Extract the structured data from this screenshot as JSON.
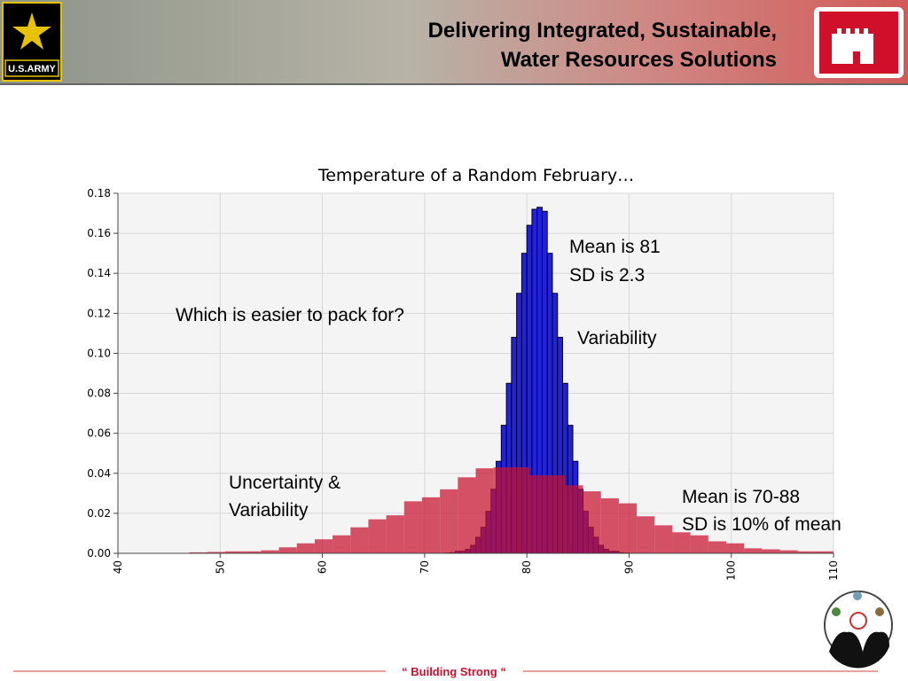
{
  "header": {
    "title_lines": [
      "Delivering Integrated, Sustainable,",
      "Water Resources Solutions"
    ],
    "logo_text": "U.S.ARMY"
  },
  "footer": "“ Building  Strong “",
  "chart_data": {
    "type": "histogram",
    "title": "Temperature of a Random February…",
    "xlim": [
      40,
      110
    ],
    "xticks": [
      40,
      50,
      60,
      70,
      80,
      90,
      100,
      110
    ],
    "ylim": [
      0,
      0.18
    ],
    "yticks": [
      {
        "value": 0,
        "label": "0.00"
      },
      0.02,
      0.04,
      0.06,
      0.08,
      {
        "value": 0.1,
        "label": "0.10"
      },
      0.12,
      0.14,
      0.16,
      0.18
    ],
    "grid": true,
    "series": [
      {
        "color": "#c8102e",
        "bins": [
          47,
          48.75,
          50.5,
          52.25,
          54,
          55.75,
          57.5,
          59.25,
          61,
          62.75,
          64.5,
          66.25,
          68,
          69.75,
          71.5,
          73.25,
          75,
          76.75,
          78.5,
          80.25,
          82,
          83.75,
          85.5,
          87.25,
          89,
          90.75,
          92.5,
          94.25,
          96,
          97.75,
          99.5,
          101.25,
          103,
          104.75,
          106.5,
          108.25,
          110
        ],
        "values": [
          0.0005,
          0.0007,
          0.001,
          0.001,
          0.0015,
          0.003,
          0.005,
          0.007,
          0.009,
          0.013,
          0.017,
          0.019,
          0.026,
          0.028,
          0.032,
          0.038,
          0.0425,
          0.043,
          0.043,
          0.039,
          0.039,
          0.034,
          0.031,
          0.0275,
          0.025,
          0.0185,
          0.014,
          0.0105,
          0.009,
          0.006,
          0.005,
          0.0025,
          0.002,
          0.0015,
          0.001,
          0.001
        ]
      },
      {
        "color": "#2222dd",
        "bins": [
          72,
          72.5,
          73,
          73.5,
          74,
          74.5,
          75,
          75.5,
          76,
          76.5,
          77,
          77.5,
          78,
          78.5,
          79,
          79.5,
          80,
          80.5,
          81,
          81.5,
          82,
          82.5,
          83,
          83.5,
          84,
          84.5,
          85,
          85.5,
          86,
          86.5,
          87,
          87.5,
          88,
          88.5,
          89,
          89.5,
          90
        ],
        "values": [
          0.0001,
          0.0003,
          0.001,
          0.001,
          0.002,
          0.004,
          0.008,
          0.013,
          0.021,
          0.032,
          0.046,
          0.064,
          0.085,
          0.108,
          0.13,
          0.15,
          0.164,
          0.172,
          0.173,
          0.171,
          0.15,
          0.13,
          0.108,
          0.085,
          0.064,
          0.046,
          0.032,
          0.021,
          0.013,
          0.008,
          0.004,
          0.002,
          0.001,
          0.001,
          0.0003,
          0.0001
        ]
      }
    ],
    "annotations": [
      {
        "lines": [
          "Mean is 81",
          "SD is 2.3"
        ]
      },
      {
        "lines": [
          "Variability"
        ]
      },
      {
        "lines": [
          "Which is easier to pack for?"
        ]
      },
      {
        "lines": [
          "Uncertainty &",
          "Variability"
        ]
      },
      {
        "lines": [
          "Mean is 70-88",
          "SD is 10% of mean"
        ]
      }
    ]
  }
}
